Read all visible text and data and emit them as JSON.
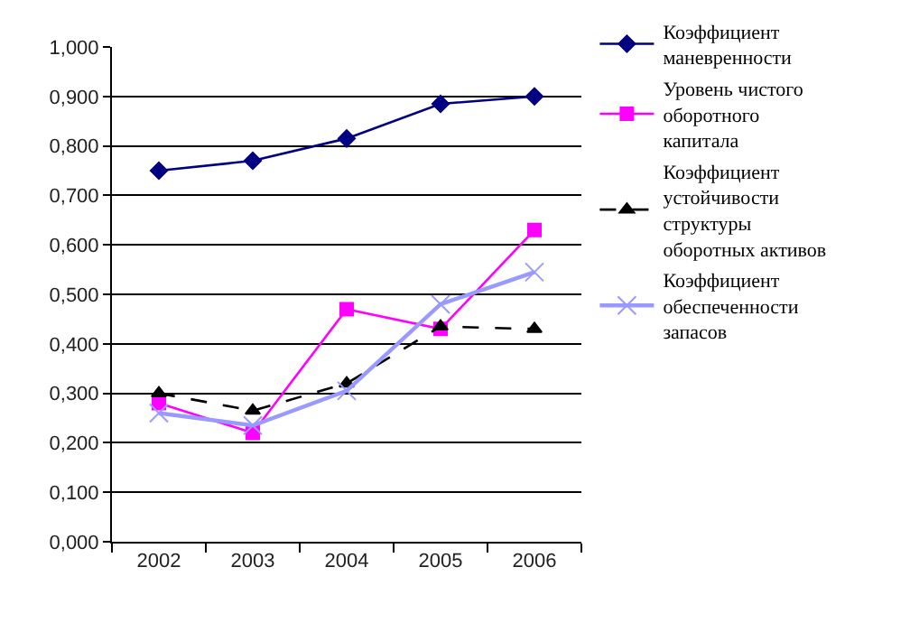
{
  "chart_data": {
    "type": "line",
    "categories": [
      "2002",
      "2003",
      "2004",
      "2005",
      "2006"
    ],
    "series": [
      {
        "name": "Коэффициент маневренности",
        "color": "#000080",
        "marker": "diamond",
        "line_style": "solid",
        "values": [
          0.75,
          0.77,
          0.815,
          0.885,
          0.9
        ]
      },
      {
        "name": "Уровень чистого оборотного капитала",
        "color": "#ff00ff",
        "marker": "square",
        "line_style": "solid",
        "values": [
          0.28,
          0.22,
          0.47,
          0.43,
          0.63
        ]
      },
      {
        "name": "Коэффициент устойчивости структуры оборотных активов",
        "color": "#000000",
        "marker": "triangle",
        "line_style": "dashed",
        "values": [
          0.3,
          0.265,
          0.32,
          0.435,
          0.43
        ]
      },
      {
        "name": "Коэффициент обеспеченности запасов",
        "color": "#9999ff",
        "marker": "cross",
        "line_style": "solid",
        "values": [
          0.26,
          0.235,
          0.305,
          0.48,
          0.545
        ]
      }
    ],
    "ylim": [
      0,
      1
    ],
    "yticks": [
      {
        "value": 0,
        "label": "0,000"
      },
      {
        "value": 0.1,
        "label": "0,100"
      },
      {
        "value": 0.2,
        "label": "0,200"
      },
      {
        "value": 0.3,
        "label": "0,300"
      },
      {
        "value": 0.4,
        "label": "0,400"
      },
      {
        "value": 0.5,
        "label": "0,500"
      },
      {
        "value": 0.6,
        "label": "0,600"
      },
      {
        "value": 0.7,
        "label": "0,700"
      },
      {
        "value": 0.8,
        "label": "0,800"
      },
      {
        "value": 0.9,
        "label": "0,900"
      },
      {
        "value": 1,
        "label": "1,000"
      }
    ],
    "grid": "y",
    "legend": "right"
  }
}
